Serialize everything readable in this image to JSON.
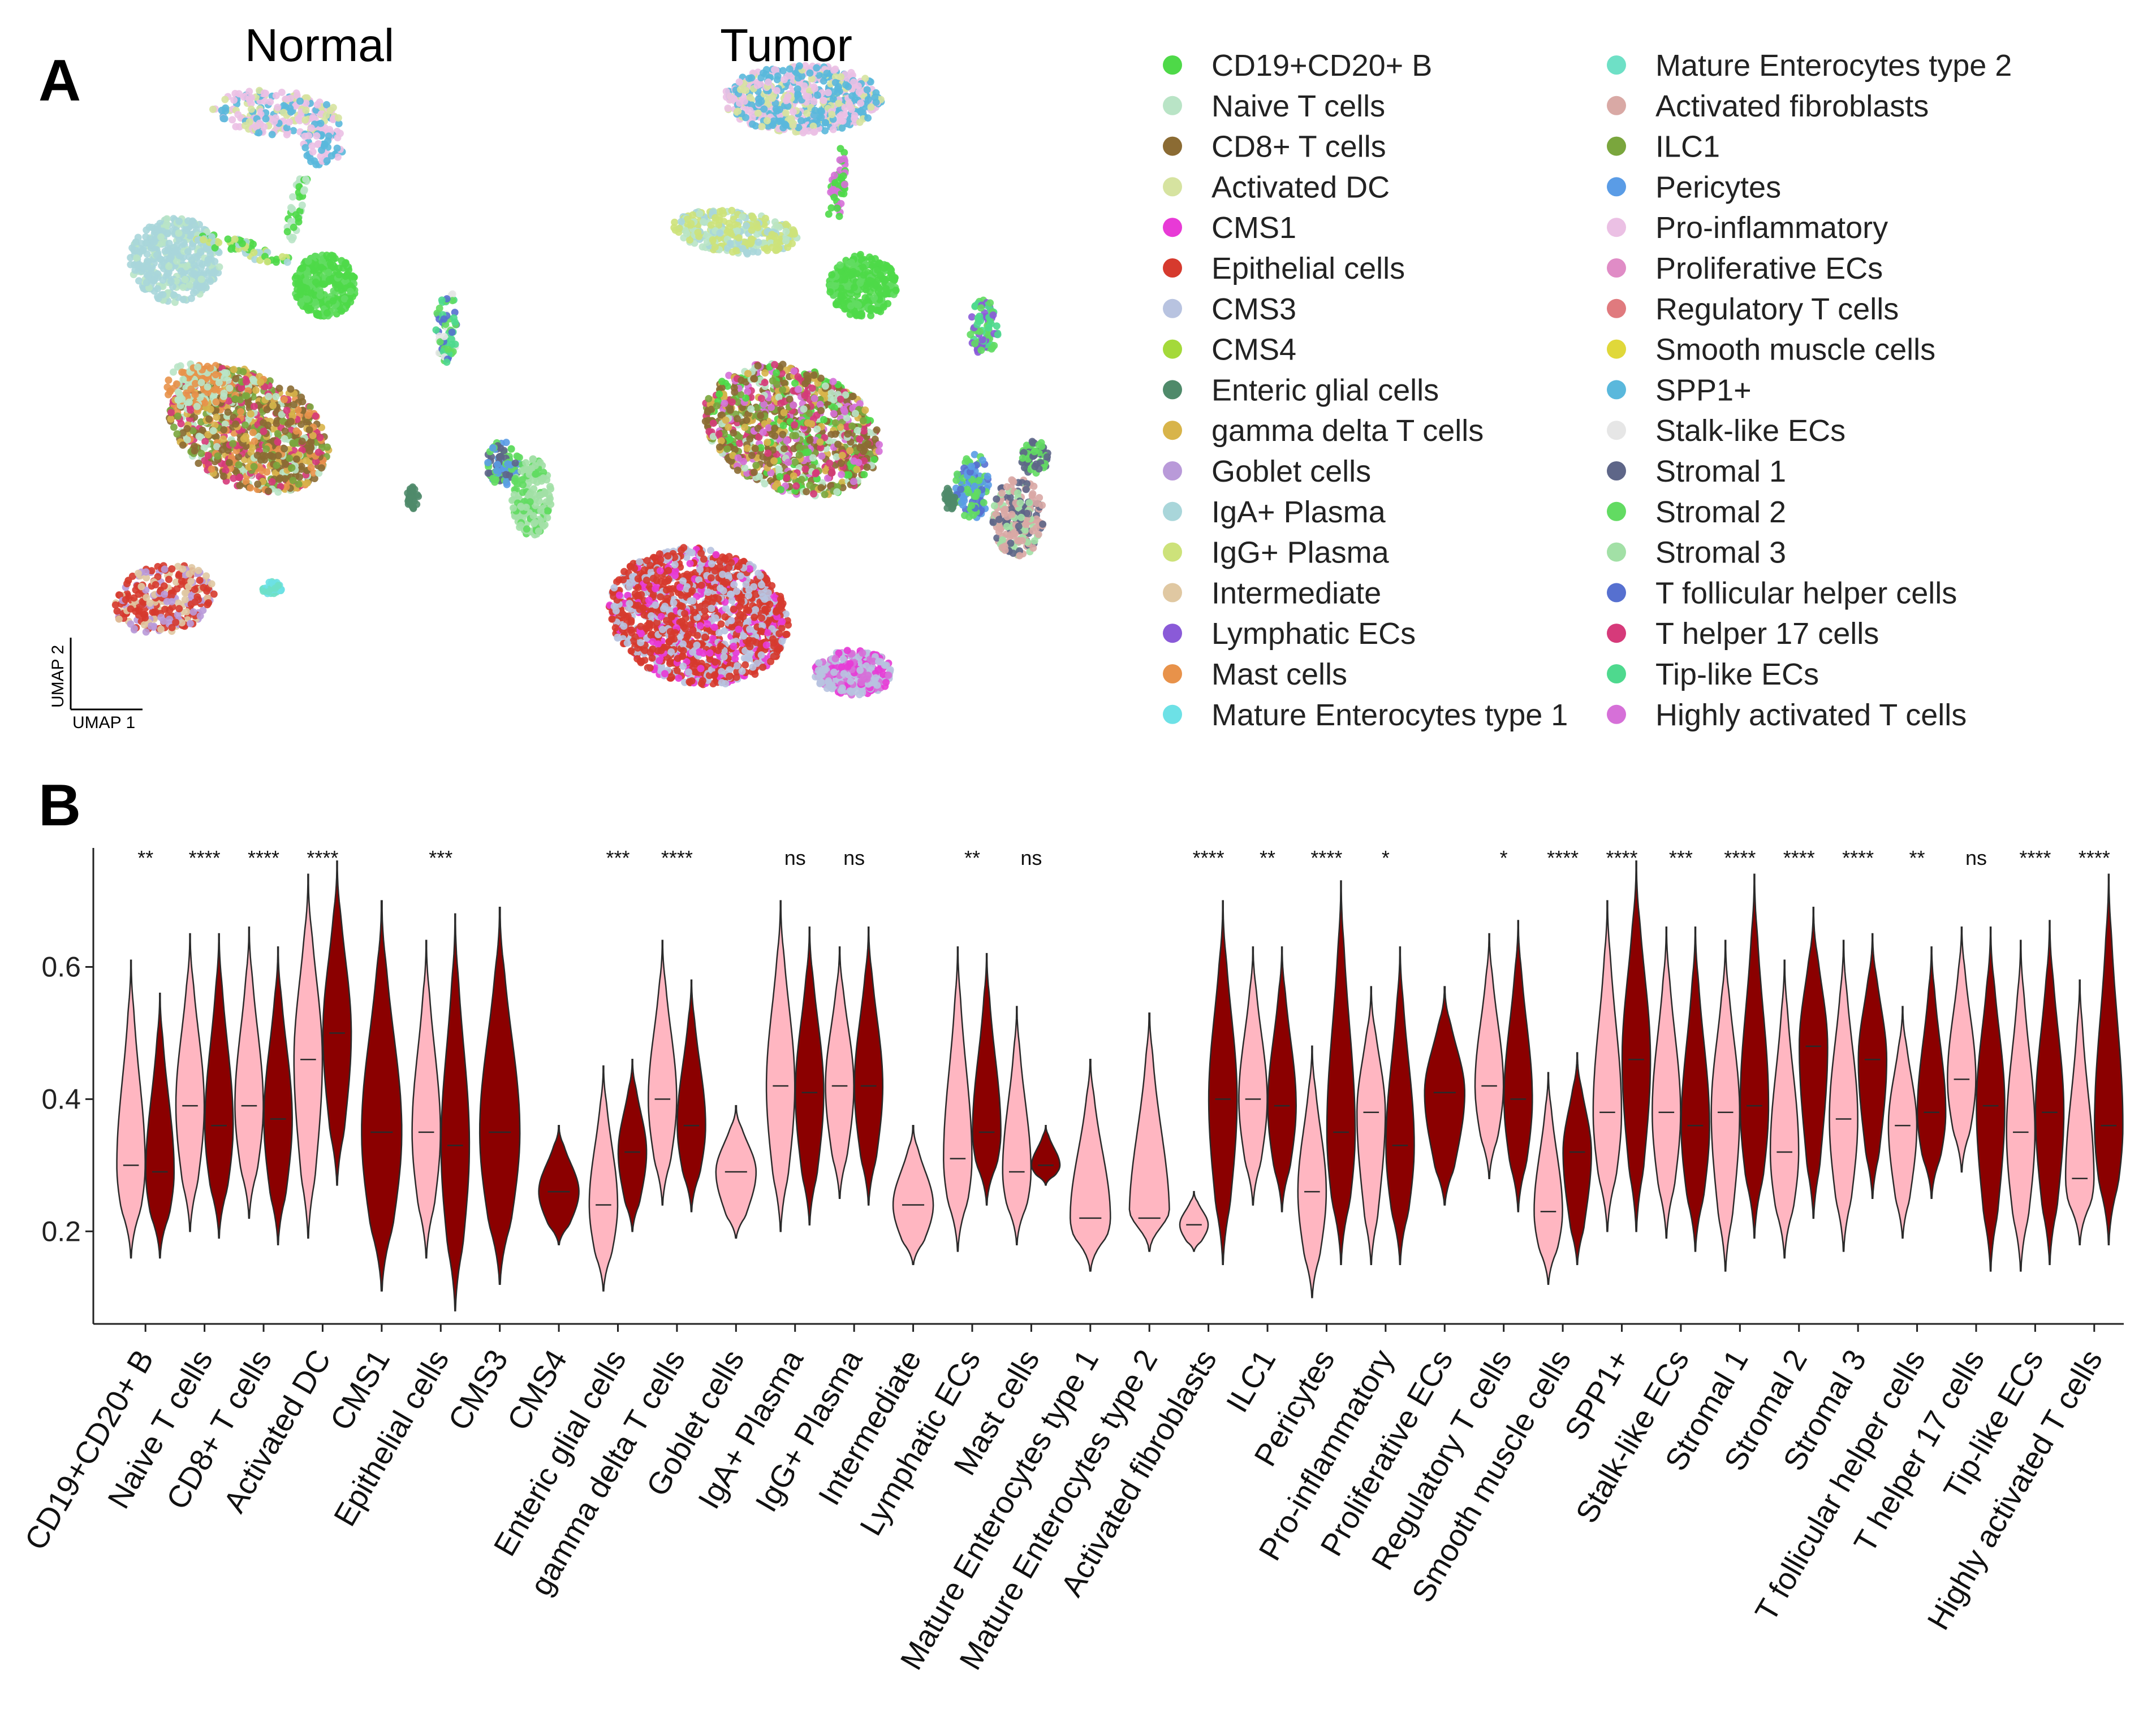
{
  "panel_a": {
    "letter": "A",
    "titles": {
      "normal": "Normal",
      "tumor": "Tumor"
    },
    "axis_labels": {
      "x": "UMAP 1",
      "y": "UMAP 2"
    },
    "legend": [
      {
        "label": "CD19+CD20+ B",
        "color": "#4ed948"
      },
      {
        "label": "Naive T cells",
        "color": "#b9e4c6"
      },
      {
        "label": "CD8+ T cells",
        "color": "#8b6b33"
      },
      {
        "label": "Activated DC",
        "color": "#d6e3a0"
      },
      {
        "label": "CMS1",
        "color": "#e83ad6"
      },
      {
        "label": "Epithelial cells",
        "color": "#d63a2e"
      },
      {
        "label": "CMS3",
        "color": "#b8c3e0"
      },
      {
        "label": "CMS4",
        "color": "#a4d93a"
      },
      {
        "label": "Enteric glial cells",
        "color": "#4f8a6a"
      },
      {
        "label": "gamma delta T cells",
        "color": "#d8b44a"
      },
      {
        "label": "Goblet cells",
        "color": "#b99ad9"
      },
      {
        "label": "IgA+ Plasma",
        "color": "#a9d6da"
      },
      {
        "label": "IgG+ Plasma",
        "color": "#cde27a"
      },
      {
        "label": "Intermediate",
        "color": "#e0c8a2"
      },
      {
        "label": "Lymphatic ECs",
        "color": "#8a5ad8"
      },
      {
        "label": "Mast cells",
        "color": "#e8924a"
      },
      {
        "label": "Mature Enterocytes type 1",
        "color": "#6de1e6"
      },
      {
        "label": "Mature Enterocytes type 2",
        "color": "#6ee0c6"
      },
      {
        "label": "Activated fibroblasts",
        "color": "#d9a9a5"
      },
      {
        "label": "ILC1",
        "color": "#7aa63d"
      },
      {
        "label": "Pericytes",
        "color": "#5a9ce6"
      },
      {
        "label": "Pro-inflammatory",
        "color": "#ebc0e4"
      },
      {
        "label": "Proliferative ECs",
        "color": "#e08cc6"
      },
      {
        "label": "Regulatory T cells",
        "color": "#e07a7e"
      },
      {
        "label": "Smooth muscle cells",
        "color": "#e0d83a"
      },
      {
        "label": "SPP1+",
        "color": "#5ab8dc"
      },
      {
        "label": "Stalk-like ECs",
        "color": "#e6e6e6"
      },
      {
        "label": "Stromal 1",
        "color": "#5e6688"
      },
      {
        "label": "Stromal 2",
        "color": "#62db62"
      },
      {
        "label": "Stromal 3",
        "color": "#a2e0a6"
      },
      {
        "label": "T follicular helper cells",
        "color": "#5670d0"
      },
      {
        "label": "T helper 17 cells",
        "color": "#d63a7a"
      },
      {
        "label": "Tip-like ECs",
        "color": "#4ed98e"
      },
      {
        "label": "Highly activated T cells",
        "color": "#d670d8"
      }
    ]
  },
  "chart_data": {
    "type": "violin",
    "panel_letter": "B",
    "title": "",
    "xlabel": "",
    "ylabel": "",
    "ylim": [
      0.06,
      0.78
    ],
    "yticks": [
      "0.2",
      "0.4",
      "0.6"
    ],
    "series": [
      {
        "name": "Normal",
        "color": "#ffb6c1"
      },
      {
        "name": "Tumor",
        "color": "#8b0000"
      }
    ],
    "categories": [
      {
        "label": "CD19+CD20+ B",
        "sig": "**",
        "normal": {
          "median": 0.3,
          "min": 0.16,
          "max": 0.61
        },
        "tumor": {
          "median": 0.29,
          "min": 0.16,
          "max": 0.56
        }
      },
      {
        "label": "Naive T cells",
        "sig": "****",
        "normal": {
          "median": 0.39,
          "min": 0.2,
          "max": 0.65
        },
        "tumor": {
          "median": 0.36,
          "min": 0.19,
          "max": 0.65
        }
      },
      {
        "label": "CD8+ T cells",
        "sig": "****",
        "normal": {
          "median": 0.39,
          "min": 0.22,
          "max": 0.66
        },
        "tumor": {
          "median": 0.37,
          "min": 0.18,
          "max": 0.63
        }
      },
      {
        "label": "Activated DC",
        "sig": "****",
        "normal": {
          "median": 0.46,
          "min": 0.19,
          "max": 0.74
        },
        "tumor": {
          "median": 0.5,
          "min": 0.27,
          "max": 0.76
        }
      },
      {
        "label": "CMS1",
        "sig": "",
        "normal": null,
        "tumor": {
          "median": 0.35,
          "min": 0.11,
          "max": 0.7
        }
      },
      {
        "label": "Epithelial cells",
        "sig": "***",
        "normal": {
          "median": 0.35,
          "min": 0.16,
          "max": 0.64
        },
        "tumor": {
          "median": 0.33,
          "min": 0.08,
          "max": 0.68
        }
      },
      {
        "label": "CMS3",
        "sig": "",
        "normal": null,
        "tumor": {
          "median": 0.35,
          "min": 0.12,
          "max": 0.69
        }
      },
      {
        "label": "CMS4",
        "sig": "",
        "normal": null,
        "tumor": {
          "median": 0.26,
          "min": 0.18,
          "max": 0.36
        }
      },
      {
        "label": "Enteric glial cells",
        "sig": "***",
        "normal": {
          "median": 0.24,
          "min": 0.11,
          "max": 0.45
        },
        "tumor": {
          "median": 0.32,
          "min": 0.2,
          "max": 0.46
        }
      },
      {
        "label": "gamma delta T cells",
        "sig": "****",
        "normal": {
          "median": 0.4,
          "min": 0.24,
          "max": 0.64
        },
        "tumor": {
          "median": 0.36,
          "min": 0.23,
          "max": 0.58
        }
      },
      {
        "label": "Goblet cells",
        "sig": "",
        "normal": {
          "median": 0.29,
          "min": 0.19,
          "max": 0.39
        },
        "tumor": null
      },
      {
        "label": "IgA+ Plasma",
        "sig": "ns",
        "normal": {
          "median": 0.42,
          "min": 0.2,
          "max": 0.7
        },
        "tumor": {
          "median": 0.41,
          "min": 0.21,
          "max": 0.66
        }
      },
      {
        "label": "IgG+ Plasma",
        "sig": "ns",
        "normal": {
          "median": 0.42,
          "min": 0.25,
          "max": 0.63
        },
        "tumor": {
          "median": 0.42,
          "min": 0.24,
          "max": 0.66
        }
      },
      {
        "label": "Intermediate",
        "sig": "",
        "normal": {
          "median": 0.24,
          "min": 0.15,
          "max": 0.36
        },
        "tumor": null
      },
      {
        "label": "Lymphatic ECs",
        "sig": "**",
        "normal": {
          "median": 0.31,
          "min": 0.17,
          "max": 0.63
        },
        "tumor": {
          "median": 0.35,
          "min": 0.24,
          "max": 0.62
        }
      },
      {
        "label": "Mast cells",
        "sig": "ns",
        "normal": {
          "median": 0.29,
          "min": 0.18,
          "max": 0.54
        },
        "tumor": {
          "median": 0.3,
          "min": 0.27,
          "max": 0.36
        }
      },
      {
        "label": "Mature Enterocytes type 1",
        "sig": "",
        "normal": {
          "median": 0.22,
          "min": 0.14,
          "max": 0.46
        },
        "tumor": null
      },
      {
        "label": "Mature Enterocytes type 2",
        "sig": "",
        "normal": {
          "median": 0.22,
          "min": 0.17,
          "max": 0.53
        },
        "tumor": null
      },
      {
        "label": "Activated fibroblasts",
        "sig": "****",
        "normal": {
          "median": 0.21,
          "min": 0.17,
          "max": 0.26
        },
        "tumor": {
          "median": 0.4,
          "min": 0.15,
          "max": 0.7
        }
      },
      {
        "label": "ILC1",
        "sig": "**",
        "normal": {
          "median": 0.4,
          "min": 0.24,
          "max": 0.63
        },
        "tumor": {
          "median": 0.39,
          "min": 0.23,
          "max": 0.63
        }
      },
      {
        "label": "Pericytes",
        "sig": "****",
        "normal": {
          "median": 0.26,
          "min": 0.1,
          "max": 0.48
        },
        "tumor": {
          "median": 0.35,
          "min": 0.15,
          "max": 0.73
        }
      },
      {
        "label": "Pro-inflammatory",
        "sig": "*",
        "normal": {
          "median": 0.38,
          "min": 0.15,
          "max": 0.57
        },
        "tumor": {
          "median": 0.33,
          "min": 0.15,
          "max": 0.63
        }
      },
      {
        "label": "Proliferative ECs",
        "sig": "",
        "normal": null,
        "tumor": {
          "median": 0.41,
          "min": 0.24,
          "max": 0.57
        }
      },
      {
        "label": "Regulatory T cells",
        "sig": "*",
        "normal": {
          "median": 0.42,
          "min": 0.28,
          "max": 0.65
        },
        "tumor": {
          "median": 0.4,
          "min": 0.23,
          "max": 0.67
        }
      },
      {
        "label": "Smooth muscle cells",
        "sig": "****",
        "normal": {
          "median": 0.23,
          "min": 0.12,
          "max": 0.44
        },
        "tumor": {
          "median": 0.32,
          "min": 0.15,
          "max": 0.47
        }
      },
      {
        "label": "SPP1+",
        "sig": "****",
        "normal": {
          "median": 0.38,
          "min": 0.2,
          "max": 0.7
        },
        "tumor": {
          "median": 0.46,
          "min": 0.2,
          "max": 0.76
        }
      },
      {
        "label": "Stalk-like ECs",
        "sig": "***",
        "normal": {
          "median": 0.38,
          "min": 0.19,
          "max": 0.66
        },
        "tumor": {
          "median": 0.36,
          "min": 0.17,
          "max": 0.66
        }
      },
      {
        "label": "Stromal 1",
        "sig": "****",
        "normal": {
          "median": 0.38,
          "min": 0.14,
          "max": 0.64
        },
        "tumor": {
          "median": 0.39,
          "min": 0.19,
          "max": 0.74
        }
      },
      {
        "label": "Stromal 2",
        "sig": "****",
        "normal": {
          "median": 0.32,
          "min": 0.16,
          "max": 0.61
        },
        "tumor": {
          "median": 0.48,
          "min": 0.22,
          "max": 0.69
        }
      },
      {
        "label": "Stromal 3",
        "sig": "****",
        "normal": {
          "median": 0.37,
          "min": 0.17,
          "max": 0.64
        },
        "tumor": {
          "median": 0.46,
          "min": 0.25,
          "max": 0.65
        }
      },
      {
        "label": "T follicular helper cells",
        "sig": "**",
        "normal": {
          "median": 0.36,
          "min": 0.19,
          "max": 0.54
        },
        "tumor": {
          "median": 0.38,
          "min": 0.25,
          "max": 0.63
        }
      },
      {
        "label": "T helper 17 cells",
        "sig": "ns",
        "normal": {
          "median": 0.43,
          "min": 0.29,
          "max": 0.66
        },
        "tumor": {
          "median": 0.39,
          "min": 0.14,
          "max": 0.66
        }
      },
      {
        "label": "Tip-like ECs",
        "sig": "****",
        "normal": {
          "median": 0.35,
          "min": 0.14,
          "max": 0.64
        },
        "tumor": {
          "median": 0.38,
          "min": 0.15,
          "max": 0.67
        }
      },
      {
        "label": "Highly activated T cells",
        "sig": "****",
        "normal": {
          "median": 0.28,
          "min": 0.18,
          "max": 0.58
        },
        "tumor": {
          "median": 0.36,
          "min": 0.18,
          "max": 0.74
        }
      }
    ]
  }
}
